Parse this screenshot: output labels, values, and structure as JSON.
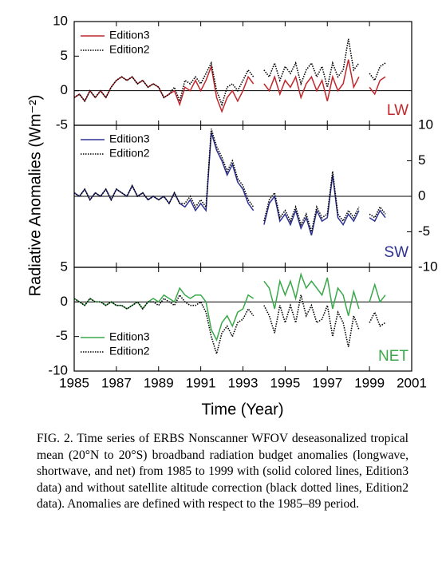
{
  "y_label": "Radiative Anomalies (Wm⁻²)",
  "x_label": "Time (Year)",
  "caption": "FIG. 2. Time series of ERBS Nonscanner WFOV deseasonalized tropical mean (20°N to 20°S) broadband radiation budget anomalies (longwave, shortwave, and net) from 1985 to 1999 with (solid colored lines, Edition3 data) and without satellite altitude correction (black dotted lines, Edition2 data). Anomalies are defined with respect to the 1985–89 period.",
  "chart_data": [
    {
      "type": "line",
      "panel_label": "LW",
      "legend": "upper left",
      "yaxis_side": "left",
      "xlim": [
        1985,
        2001
      ],
      "xticks": [
        1985,
        1987,
        1989,
        1991,
        1993,
        1995,
        1997,
        1999,
        2001
      ],
      "ylim": [
        -5,
        10
      ],
      "yticks": [
        -5,
        0,
        5,
        10
      ],
      "x": [
        1985,
        1985.25,
        1985.5,
        1985.75,
        1986,
        1986.25,
        1986.5,
        1986.75,
        1987,
        1987.25,
        1987.5,
        1987.75,
        1988,
        1988.25,
        1988.5,
        1988.75,
        1989,
        1989.25,
        1989.5,
        1989.75,
        1990,
        1990.25,
        1990.5,
        1990.75,
        1991,
        1991.25,
        1991.5,
        1991.75,
        1992,
        1992.25,
        1992.5,
        1992.75,
        1993,
        1993.25,
        1993.5,
        1993.75,
        1994,
        1994.25,
        1994.5,
        1994.75,
        1995,
        1995.25,
        1995.5,
        1995.75,
        1996,
        1996.25,
        1996.5,
        1996.75,
        1997,
        1997.25,
        1997.5,
        1997.75,
        1998,
        1998.25,
        1998.5,
        1998.75,
        1999,
        1999.25,
        1999.5,
        1999.75
      ],
      "series": [
        {
          "name": "Edition3",
          "color": "#c1272d",
          "style": "solid",
          "values": [
            -1,
            -0.5,
            -1.5,
            0,
            -1,
            0,
            -1,
            0.5,
            1.5,
            2,
            1.5,
            2,
            1,
            1.5,
            0.5,
            1,
            0.5,
            -1,
            -0.5,
            0,
            -2,
            0.5,
            0,
            1.5,
            0,
            1.5,
            3.5,
            -1,
            -3,
            -1,
            0,
            -1.5,
            0,
            2,
            1,
            null,
            1,
            0,
            2,
            -0.5,
            1.5,
            0.5,
            2,
            -1,
            1,
            2,
            0,
            1.5,
            -1.5,
            2,
            0,
            1,
            4.5,
            0.5,
            2,
            null,
            0.5,
            -0.5,
            1.5,
            2
          ]
        },
        {
          "name": "Edition2",
          "color": "#000000",
          "style": "dotted",
          "values": [
            -1,
            -0.5,
            -1.5,
            0,
            -1,
            0,
            -1,
            0.5,
            1.5,
            2,
            1.5,
            2,
            1,
            1.5,
            0.5,
            1,
            0.5,
            -1,
            -0.5,
            0.5,
            -1.5,
            1.5,
            1,
            2,
            1,
            2.5,
            4,
            0,
            -2,
            0.5,
            1,
            0,
            1.5,
            3,
            2,
            null,
            3,
            2,
            4,
            1.5,
            3.5,
            2.5,
            4,
            1,
            3,
            4,
            2,
            3.5,
            0.5,
            4,
            2,
            3,
            7.5,
            3,
            4,
            null,
            2.5,
            1.5,
            3.5,
            4
          ]
        }
      ]
    },
    {
      "type": "line",
      "panel_label": "SW",
      "legend": "upper left",
      "yaxis_side": "right",
      "xlim": [
        1985,
        2001
      ],
      "xticks": [
        1985,
        1987,
        1989,
        1991,
        1993,
        1995,
        1997,
        1999,
        2001
      ],
      "ylim": [
        -10,
        10
      ],
      "yticks": [
        -10,
        -5,
        0,
        5,
        10
      ],
      "x": [
        1985,
        1985.25,
        1985.5,
        1985.75,
        1986,
        1986.25,
        1986.5,
        1986.75,
        1987,
        1987.25,
        1987.5,
        1987.75,
        1988,
        1988.25,
        1988.5,
        1988.75,
        1989,
        1989.25,
        1989.5,
        1989.75,
        1990,
        1990.25,
        1990.5,
        1990.75,
        1991,
        1991.25,
        1991.5,
        1991.75,
        1992,
        1992.25,
        1992.5,
        1992.75,
        1993,
        1993.25,
        1993.5,
        1993.75,
        1994,
        1994.25,
        1994.5,
        1994.75,
        1995,
        1995.25,
        1995.5,
        1995.75,
        1996,
        1996.25,
        1996.5,
        1996.75,
        1997,
        1997.25,
        1997.5,
        1997.75,
        1998,
        1998.25,
        1998.5,
        1998.75,
        1999,
        1999.25,
        1999.5,
        1999.75
      ],
      "series": [
        {
          "name": "Edition3",
          "color": "#2e3192",
          "style": "solid",
          "values": [
            0.5,
            0,
            1,
            -0.5,
            0.5,
            0,
            1,
            -0.5,
            1,
            0.5,
            0,
            1.5,
            0,
            0.5,
            -0.5,
            0,
            -0.5,
            0,
            -1,
            0.5,
            -1,
            -1.5,
            -0.5,
            -2,
            -1,
            -2,
            9,
            6.5,
            5,
            3,
            4.5,
            2,
            1,
            -1,
            -2,
            null,
            -4,
            -1,
            0,
            -3.5,
            -2.5,
            -4,
            -2,
            -4.5,
            -3,
            -5.5,
            -2,
            -3.5,
            -3,
            3,
            -3,
            -4,
            -2.5,
            -3.5,
            -2,
            null,
            -3,
            -3.5,
            -2,
            -3
          ]
        },
        {
          "name": "Edition2",
          "color": "#000000",
          "style": "dotted",
          "values": [
            0.5,
            0,
            1,
            -0.5,
            0.5,
            0,
            1,
            -0.5,
            1,
            0.5,
            0,
            1.5,
            0,
            0.5,
            -0.5,
            0,
            -0.5,
            0,
            -1,
            0.5,
            -1,
            -1,
            0,
            -1.5,
            -0.5,
            -1.5,
            9.5,
            7,
            5.5,
            3.5,
            5,
            2.5,
            1.5,
            -0.5,
            -1.5,
            null,
            -3.5,
            -0.5,
            0.5,
            -3,
            -2,
            -3.5,
            -1.5,
            -4,
            -2.5,
            -5,
            -1.5,
            -3,
            -2.5,
            3.5,
            -2.5,
            -3.5,
            -2,
            -3,
            -1.5,
            null,
            -2.5,
            -3,
            -1.5,
            -2.5
          ]
        }
      ]
    },
    {
      "type": "line",
      "panel_label": "NET",
      "legend": "lower left",
      "yaxis_side": "left",
      "xlim": [
        1985,
        2001
      ],
      "xticks": [
        1985,
        1987,
        1989,
        1991,
        1993,
        1995,
        1997,
        1999,
        2001
      ],
      "ylim": [
        -10,
        5
      ],
      "yticks": [
        -10,
        -5,
        0,
        5
      ],
      "x": [
        1985,
        1985.25,
        1985.5,
        1985.75,
        1986,
        1986.25,
        1986.5,
        1986.75,
        1987,
        1987.25,
        1987.5,
        1987.75,
        1988,
        1988.25,
        1988.5,
        1988.75,
        1989,
        1989.25,
        1989.5,
        1989.75,
        1990,
        1990.25,
        1990.5,
        1990.75,
        1991,
        1991.25,
        1991.5,
        1991.75,
        1992,
        1992.25,
        1992.5,
        1992.75,
        1993,
        1993.25,
        1993.5,
        1993.75,
        1994,
        1994.25,
        1994.5,
        1994.75,
        1995,
        1995.25,
        1995.5,
        1995.75,
        1996,
        1996.25,
        1996.5,
        1996.75,
        1997,
        1997.25,
        1997.5,
        1997.75,
        1998,
        1998.25,
        1998.5,
        1998.75,
        1999,
        1999.25,
        1999.5,
        1999.75
      ],
      "series": [
        {
          "name": "Edition3",
          "color": "#39a94a",
          "style": "solid",
          "values": [
            0.5,
            0,
            -0.5,
            0.5,
            0,
            0,
            -0.5,
            0,
            -0.5,
            -0.5,
            -1,
            -0.5,
            0,
            -1,
            0,
            0.5,
            0,
            1,
            0.5,
            0,
            2,
            1,
            0.5,
            1,
            1,
            0,
            -4,
            -5.5,
            -3,
            -2,
            -3.5,
            -1.5,
            -1,
            1,
            0.5,
            null,
            3,
            2,
            -1,
            3,
            1,
            3,
            0.5,
            4,
            2,
            3,
            2,
            1,
            3.5,
            -1,
            2,
            1,
            -2,
            1.5,
            -1,
            null,
            0,
            2.5,
            0,
            1
          ]
        },
        {
          "name": "Edition2",
          "color": "#000000",
          "style": "dotted",
          "values": [
            0.5,
            0,
            -0.5,
            0.5,
            0,
            0,
            -0.5,
            0,
            -0.5,
            -0.5,
            -1,
            -0.5,
            0,
            -1,
            0,
            0,
            -0.5,
            0.5,
            0,
            -0.5,
            1,
            0,
            -0.5,
            -0.5,
            0,
            -1.5,
            -5,
            -7.5,
            -4.5,
            -3.5,
            -5,
            -3,
            -2.5,
            -1,
            -2,
            null,
            -0.5,
            -2,
            -4.5,
            -0.5,
            -3,
            -0.5,
            -3,
            1,
            -2,
            -0.5,
            -3,
            -2.5,
            -0.5,
            -5,
            -1.5,
            -3,
            -6.5,
            -2,
            -4,
            null,
            -3,
            -1.5,
            -3.5,
            -3
          ]
        }
      ]
    }
  ]
}
